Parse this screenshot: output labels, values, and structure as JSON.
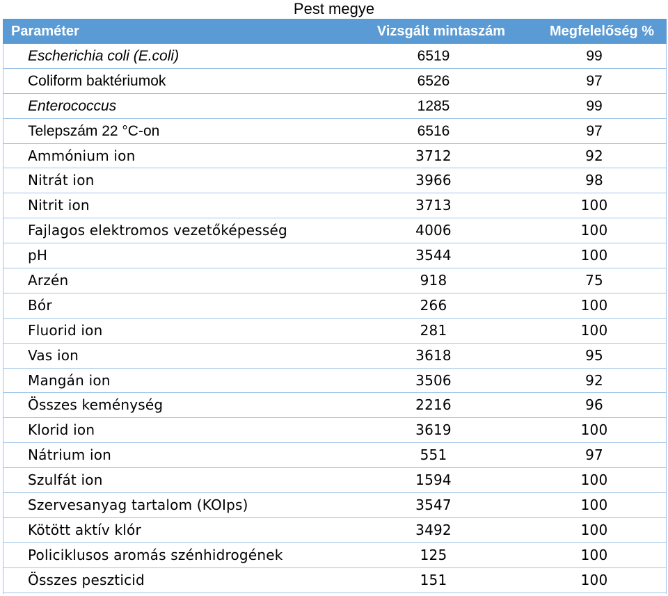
{
  "title": "Pest megye",
  "header": {
    "param": "Paraméter",
    "count": "Vizsgált mintaszám",
    "conformity": "Megfelelőség %"
  },
  "rows": [
    {
      "param": "Escherichia coli (E.coli)",
      "count": "6519",
      "conformity": "99",
      "italic": true
    },
    {
      "param": "Coliform baktériumok",
      "count": "6526",
      "conformity": "97",
      "italic": false
    },
    {
      "param": "Enterococcus",
      "count": "1285",
      "conformity": "99",
      "italic": true
    },
    {
      "param": "Telepszám 22 °C-on",
      "count": "6516",
      "conformity": "97",
      "italic": false
    },
    {
      "param": "Ammónium ion",
      "count": "3712",
      "conformity": "92",
      "italic": false
    },
    {
      "param": "Nitrát ion",
      "count": "3966",
      "conformity": "98",
      "italic": false
    },
    {
      "param": "Nitrit ion",
      "count": "3713",
      "conformity": "100",
      "italic": false
    },
    {
      "param": "Fajlagos elektromos vezetőképesség",
      "count": "4006",
      "conformity": "100",
      "italic": false
    },
    {
      "param": "pH",
      "count": "3544",
      "conformity": "100",
      "italic": false
    },
    {
      "param": "Arzén",
      "count": "918",
      "conformity": "75",
      "italic": false
    },
    {
      "param": "Bór",
      "count": "266",
      "conformity": "100",
      "italic": false
    },
    {
      "param": "Fluorid ion",
      "count": "281",
      "conformity": "100",
      "italic": false
    },
    {
      "param": "Vas ion",
      "count": "3618",
      "conformity": "95",
      "italic": false
    },
    {
      "param": "Mangán ion",
      "count": "3506",
      "conformity": "92",
      "italic": false
    },
    {
      "param": "Összes keménység",
      "count": "2216",
      "conformity": "96",
      "italic": false
    },
    {
      "param": "Klorid ion",
      "count": "3619",
      "conformity": "100",
      "italic": false
    },
    {
      "param": "Nátrium ion",
      "count": "551",
      "conformity": "97",
      "italic": false
    },
    {
      "param": "Szulfát ion",
      "count": "1594",
      "conformity": "100",
      "italic": false
    },
    {
      "param": "Szervesanyag tartalom (KOIps)",
      "count": "3547",
      "conformity": "100",
      "italic": false
    },
    {
      "param": "Kötött aktív klór",
      "count": "3492",
      "conformity": "100",
      "italic": false
    },
    {
      "param": "Policiklusos aromás szénhidrogének",
      "count": "125",
      "conformity": "100",
      "italic": false
    },
    {
      "param": "Összes peszticid",
      "count": "151",
      "conformity": "100",
      "italic": false
    }
  ]
}
